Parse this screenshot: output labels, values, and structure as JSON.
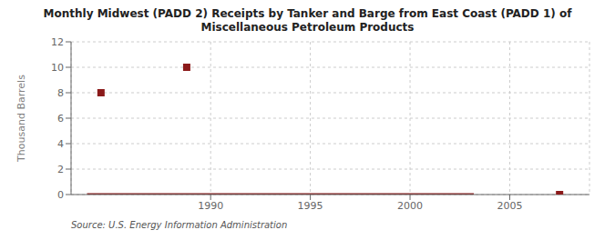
{
  "chart_data": {
    "type": "line",
    "title": "Monthly Midwest (PADD 2) Receipts by Tanker and Barge from East Coast (PADD 1) of\nMiscellaneous Petroleum Products",
    "ylabel": "Thousand Barrels",
    "annotations": [
      "Source: U.S. Energy Information Administration"
    ],
    "series": [
      {
        "type": "line",
        "color": "#8b1a1a",
        "marker": "none",
        "x": [
          1983.8,
          2003.2
        ],
        "values": [
          0,
          0
        ]
      },
      {
        "type": "scatter",
        "color": "#8b1a1a",
        "marker": "square",
        "x": [
          1984.5,
          1988.8,
          2007.5
        ],
        "values": [
          8.0,
          10.0,
          0.0
        ]
      }
    ],
    "xlim": [
      1983,
      2009
    ],
    "ylim": [
      0,
      12
    ],
    "xticks": [
      1990,
      1995,
      2000,
      2005
    ],
    "yticks": [
      0,
      2,
      4,
      6,
      8,
      10,
      12
    ],
    "grid": true
  }
}
